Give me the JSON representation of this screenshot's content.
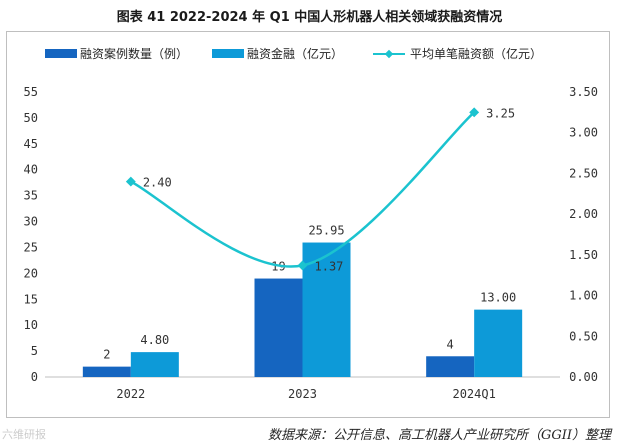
{
  "title": "图表 41   2022-2024 年 Q1 中国人形机器人相关领域获融资情况",
  "source": "数据来源：公开信息、高工机器人产业研究所（GGII）整理",
  "watermark": "六维研报",
  "chart_data": {
    "type": "bar+line",
    "categories": [
      "2022",
      "2023",
      "2024Q1"
    ],
    "series": [
      {
        "name": "融资案例数量（例）",
        "type": "bar",
        "axis": "left",
        "color": "#1565c0",
        "values": [
          2,
          19,
          4
        ],
        "labels": [
          "2",
          "19",
          "4"
        ]
      },
      {
        "name": "融资金融（亿元）",
        "type": "bar",
        "axis": "left",
        "color": "#0d9ad8",
        "values": [
          4.8,
          25.95,
          13.0
        ],
        "labels": [
          "4.80",
          "25.95",
          "13.00"
        ]
      },
      {
        "name": "平均单笔融资额（亿元）",
        "type": "line",
        "smooth": true,
        "axis": "right",
        "color": "#1bc3cf",
        "values": [
          2.4,
          1.37,
          3.25
        ],
        "labels": [
          "2.40",
          "1.37",
          "3.25"
        ]
      }
    ],
    "left_axis": {
      "min": 0,
      "max": 55,
      "ticks": [
        "0",
        "5",
        "10",
        "15",
        "20",
        "25",
        "30",
        "35",
        "40",
        "45",
        "50",
        "55"
      ]
    },
    "right_axis": {
      "min": 0,
      "max": 3.5,
      "ticks": [
        "0.00",
        "0.50",
        "1.00",
        "1.50",
        "2.00",
        "2.50",
        "3.00",
        "3.50"
      ]
    },
    "grid": false,
    "legend": "top"
  }
}
